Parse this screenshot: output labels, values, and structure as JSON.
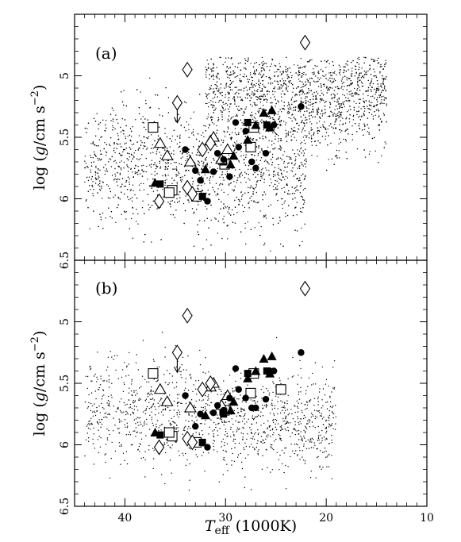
{
  "chart_data": {
    "type": "scatter",
    "xlabel": {
      "main": "T",
      "sub": "eff",
      "unit": "(1000K)"
    },
    "ylabel": {
      "prefix": "log (",
      "g": "g",
      "unit": "/cm s",
      "sup": "−2",
      "suffix": ")"
    },
    "xlim": [
      45,
      10
    ],
    "ylim": [
      6.5,
      4.5
    ],
    "x_ticks": [
      "40",
      "30",
      "20",
      "10"
    ],
    "y_ticks": [
      "5",
      "5.5",
      "6",
      "6.5"
    ],
    "panels": [
      {
        "label": "(a)",
        "background_points": "dense cloud of model stars, ~5000 dots, roughly Teff 14–44 kK, log g 4.9–6.4",
        "open_squares": [
          [
            37.2,
            5.42
          ],
          [
            35.3,
            5.93
          ],
          [
            35.6,
            5.95
          ],
          [
            32.9,
            5.98
          ],
          [
            30.1,
            5.72
          ],
          [
            27.5,
            5.58
          ],
          [
            27.2,
            5.42
          ]
        ],
        "filled_squares": [
          [
            36.5,
            5.88
          ],
          [
            32.3,
            5.98
          ],
          [
            30.2,
            5.7
          ],
          [
            27.8,
            5.38
          ],
          [
            25.9,
            5.4
          ]
        ],
        "open_triangles": [
          [
            36.5,
            5.55
          ],
          [
            35.8,
            5.65
          ],
          [
            31.5,
            5.53
          ],
          [
            31.2,
            5.5
          ],
          [
            30.4,
            5.68
          ],
          [
            33.5,
            5.7
          ],
          [
            29.8,
            5.6
          ]
        ],
        "filled_triangles": [
          [
            37.0,
            5.87
          ],
          [
            32.0,
            5.76
          ],
          [
            29.2,
            5.65
          ],
          [
            27.8,
            5.52
          ],
          [
            27.0,
            5.4
          ],
          [
            26.2,
            5.3
          ],
          [
            25.4,
            5.28
          ],
          [
            25.6,
            5.42
          ],
          [
            29.5,
            5.72
          ]
        ],
        "filled_circles": [
          [
            34.0,
            5.6
          ],
          [
            33.0,
            5.77
          ],
          [
            31.8,
            6.02
          ],
          [
            31.2,
            5.78
          ],
          [
            30.8,
            5.63
          ],
          [
            29.6,
            5.82
          ],
          [
            29.0,
            5.38
          ],
          [
            28.7,
            5.58
          ],
          [
            28.0,
            5.45
          ],
          [
            27.4,
            5.7
          ],
          [
            27.0,
            5.75
          ],
          [
            26.0,
            5.63
          ],
          [
            25.2,
            5.4
          ],
          [
            22.5,
            5.25
          ],
          [
            32.5,
            5.85
          ],
          [
            30.2,
            5.68
          ]
        ],
        "open_diamonds": [
          [
            36.6,
            6.02
          ],
          [
            33.8,
            4.95
          ],
          [
            34.8,
            5.22
          ],
          [
            33.8,
            5.91
          ],
          [
            33.3,
            5.96
          ],
          [
            32.3,
            5.6
          ],
          [
            31.5,
            5.55
          ],
          [
            22.1,
            4.73
          ]
        ]
      },
      {
        "label": "(b)",
        "background_points": "sparser cloud of model stars, ~1300 dots, roughly Teff 19–44 kK, log g 5.2–6.4",
        "open_squares": [
          [
            37.2,
            5.42
          ],
          [
            35.3,
            5.93
          ],
          [
            35.6,
            5.9
          ],
          [
            32.9,
            5.98
          ],
          [
            30.1,
            5.72
          ],
          [
            27.5,
            5.58
          ],
          [
            24.5,
            5.55
          ],
          [
            27.2,
            5.42
          ]
        ],
        "filled_squares": [
          [
            36.5,
            5.92
          ],
          [
            32.3,
            5.98
          ],
          [
            30.2,
            5.75
          ],
          [
            27.8,
            5.42
          ],
          [
            25.9,
            5.4
          ]
        ],
        "open_triangles": [
          [
            36.5,
            5.55
          ],
          [
            35.8,
            5.65
          ],
          [
            31.5,
            5.53
          ],
          [
            31.2,
            5.5
          ],
          [
            30.4,
            5.68
          ],
          [
            33.5,
            5.7
          ],
          [
            29.8,
            5.6
          ]
        ],
        "filled_triangles": [
          [
            37.0,
            5.9
          ],
          [
            32.0,
            5.76
          ],
          [
            29.2,
            5.65
          ],
          [
            27.8,
            5.46
          ],
          [
            27.0,
            5.4
          ],
          [
            26.2,
            5.3
          ],
          [
            25.4,
            5.28
          ],
          [
            25.6,
            5.42
          ],
          [
            29.5,
            5.72
          ]
        ],
        "filled_circles": [
          [
            34.0,
            5.6
          ],
          [
            33.0,
            5.85
          ],
          [
            31.8,
            6.02
          ],
          [
            31.2,
            5.74
          ],
          [
            30.8,
            5.68
          ],
          [
            29.6,
            5.62
          ],
          [
            29.0,
            5.38
          ],
          [
            28.7,
            5.55
          ],
          [
            28.0,
            5.62
          ],
          [
            27.4,
            5.7
          ],
          [
            27.0,
            5.7
          ],
          [
            26.0,
            5.63
          ],
          [
            25.2,
            5.4
          ],
          [
            22.5,
            5.25
          ],
          [
            32.5,
            5.75
          ],
          [
            30.2,
            5.72
          ],
          [
            25.6,
            5.4
          ]
        ],
        "open_diamonds": [
          [
            36.6,
            6.02
          ],
          [
            33.8,
            4.95
          ],
          [
            34.8,
            5.25
          ],
          [
            33.8,
            5.95
          ],
          [
            33.3,
            5.98
          ],
          [
            32.3,
            5.55
          ],
          [
            31.5,
            5.5
          ],
          [
            22.1,
            4.73
          ]
        ]
      }
    ]
  }
}
